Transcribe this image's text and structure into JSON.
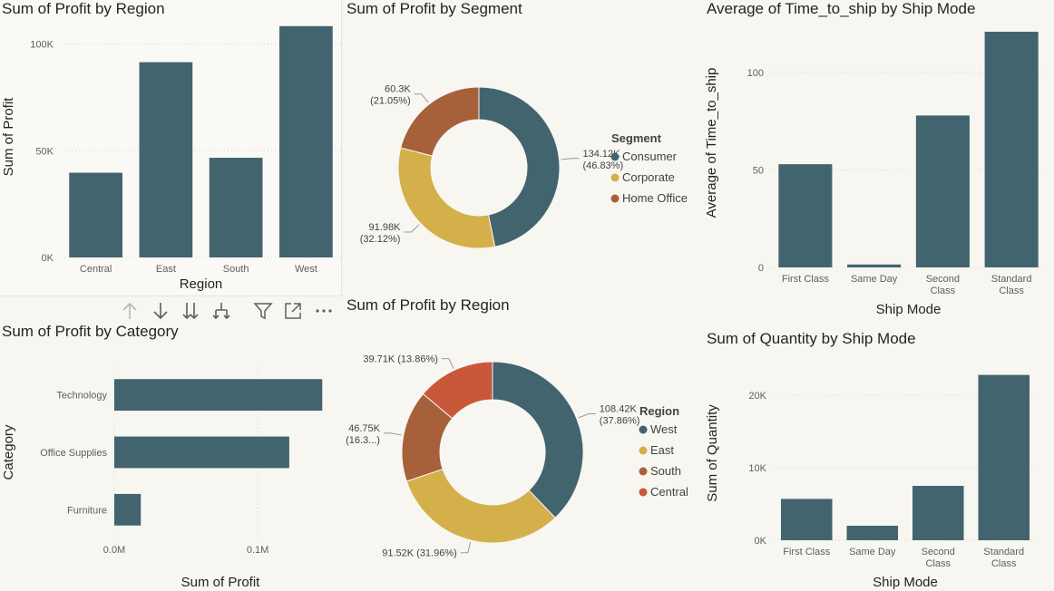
{
  "palette": {
    "teal": "#41646f",
    "gold": "#d4b04a",
    "brown": "#a7613a",
    "red": "#c9583b"
  },
  "toolbar": [
    {
      "name": "drill-up-icon"
    },
    {
      "name": "drill-down-icon"
    },
    {
      "name": "expand-next-level-icon"
    },
    {
      "name": "expand-all-icon"
    },
    {
      "name": "filter-icon"
    },
    {
      "name": "focus-mode-icon"
    },
    {
      "name": "more-options-icon"
    }
  ],
  "chart_data": [
    {
      "id": "profit-region-bar",
      "type": "bar",
      "title": "Sum of Profit by Region",
      "categories": [
        "Central",
        "East",
        "South",
        "West"
      ],
      "values": [
        39.7,
        91.5,
        46.7,
        108.4
      ],
      "yticks": [
        {
          "v": 0,
          "label": "0K"
        },
        {
          "v": 50,
          "label": "50K"
        },
        {
          "v": 100,
          "label": "100K"
        }
      ],
      "ylim": [
        0,
        113
      ],
      "xlabel": "Region",
      "ylabel": "Sum of Profit",
      "color": "#41646f"
    },
    {
      "id": "profit-segment-donut",
      "type": "pie",
      "title": "Sum of Profit by Segment",
      "legend_title": "Segment",
      "slices": [
        {
          "name": "Consumer",
          "value": 134.12,
          "label1": "134.12K",
          "label2": "(46.83%)",
          "color": "#41646f"
        },
        {
          "name": "Corporate",
          "value": 91.98,
          "label1": "91.98K",
          "label2": "(32.12%)",
          "color": "#d4b04a"
        },
        {
          "name": "Home Office",
          "value": 60.3,
          "label1": "60.3K",
          "label2": "(21.05%)",
          "color": "#a7613a"
        }
      ]
    },
    {
      "id": "time-ship-bar",
      "type": "bar",
      "title": "Average of Time_to_ship by Ship Mode",
      "categories": [
        [
          "First Class"
        ],
        [
          "Same Day"
        ],
        [
          "Second",
          "Class"
        ],
        [
          "Standard",
          "Class"
        ]
      ],
      "values": [
        53,
        1.5,
        78,
        121
      ],
      "yticks": [
        {
          "v": 0,
          "label": "0"
        },
        {
          "v": 50,
          "label": "50"
        },
        {
          "v": 100,
          "label": "100"
        }
      ],
      "ylim": [
        0,
        128
      ],
      "xlabel": "Ship Mode",
      "ylabel": "Average of Time_to_ship",
      "color": "#41646f"
    },
    {
      "id": "profit-category-hbar",
      "type": "bar",
      "title": "Sum of Profit by Category",
      "categories": [
        "Technology",
        "Office Supplies",
        "Furniture"
      ],
      "values": [
        0.145,
        0.122,
        0.0185
      ],
      "xticks": [
        {
          "v": 0,
          "label": "0.0M"
        },
        {
          "v": 0.1,
          "label": "0.1M"
        }
      ],
      "xlim": [
        0,
        0.148
      ],
      "xlabel": "Sum of Profit",
      "ylabel": "Category",
      "color": "#41646f"
    },
    {
      "id": "profit-region-donut",
      "type": "pie",
      "title": "Sum of Profit by Region",
      "legend_title": "Region",
      "slices": [
        {
          "name": "West",
          "value": 108.42,
          "label1": "108.42K",
          "label2": "(37.86%)",
          "color": "#41646f"
        },
        {
          "name": "East",
          "value": 91.52,
          "label1": "91.52K (31.96%)",
          "label2": "",
          "color": "#d4b04a"
        },
        {
          "name": "South",
          "value": 46.75,
          "label1": "46.75K",
          "label2": "(16.3...)",
          "color": "#a7613a"
        },
        {
          "name": "Central",
          "value": 39.71,
          "label1": "39.71K (13.86%)",
          "label2": "",
          "color": "#c9583b"
        }
      ]
    },
    {
      "id": "quantity-ship-bar",
      "type": "bar",
      "title": "Sum of Quantity by Ship Mode",
      "categories": [
        [
          "First Class"
        ],
        [
          "Same Day"
        ],
        [
          "Second",
          "Class"
        ],
        [
          "Standard",
          "Class"
        ]
      ],
      "values": [
        5700,
        2000,
        7500,
        22800
      ],
      "yticks": [
        {
          "v": 0,
          "label": "0K"
        },
        {
          "v": 10000,
          "label": "10K"
        },
        {
          "v": 20000,
          "label": "20K"
        }
      ],
      "ylim": [
        0,
        24000
      ],
      "xlabel": "Ship Mode",
      "ylabel": "Sum of Quantity",
      "color": "#41646f"
    }
  ]
}
